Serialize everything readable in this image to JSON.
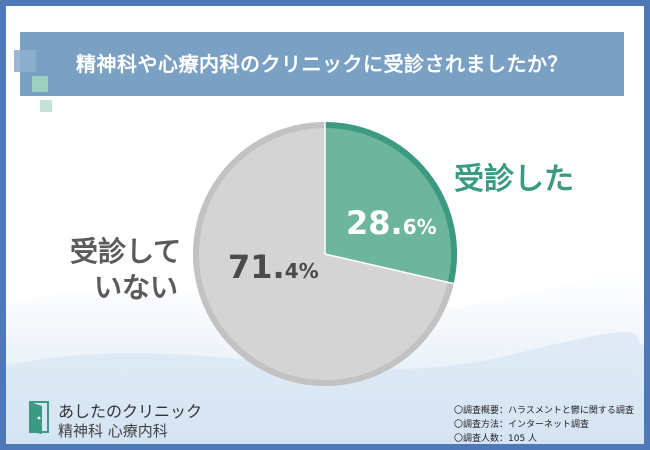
{
  "title": "精神科や心療内科のクリニックに受診されましたか？",
  "colors": {
    "frame": "#4f78b8",
    "header": "#7aa0c4",
    "accent": "#3d9a82",
    "slice_yes": "#6db59c",
    "slice_no": "#d4d4d4"
  },
  "chart_data": {
    "type": "pie",
    "title": "精神科や心療内科のクリニックに受診されましたか？",
    "slices": [
      {
        "label": "受診した",
        "value": 28.6,
        "value_num": "28.",
        "value_dec": "6%"
      },
      {
        "label_lines": [
          "受診して",
          "いない"
        ],
        "value": 71.4,
        "value_num": "71.",
        "value_dec": "4%"
      }
    ]
  },
  "logo": {
    "name": "あしたのクリニック",
    "sub": "精神科 心療内科",
    "icon": "door-icon"
  },
  "notes": [
    "〇調査概要：ハラスメントと鬱に関する調査",
    "〇調査方法：インターネット調査",
    "〇調査人数：105 人"
  ]
}
